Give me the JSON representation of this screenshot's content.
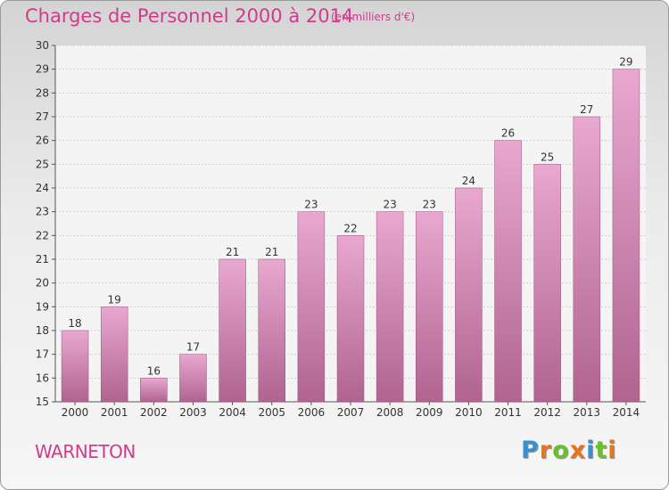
{
  "header": {
    "title": "Charges de Personnel 2000 à 2014",
    "unit": "(en milliers d'€)"
  },
  "footer": {
    "place": "WARNETON",
    "logo_text": "Proxiti"
  },
  "colors": {
    "accent": "#d23a8c",
    "bar_top": "#e8a8cf",
    "bar_bottom": "#b0648f",
    "logo": [
      "#3a8fd1",
      "#e8731a",
      "#6abf2a",
      "#e8731a",
      "#3a8fd1",
      "#6abf2a",
      "#e8731a"
    ]
  },
  "chart_data": {
    "type": "bar",
    "title": "Charges de Personnel 2000 à 2014",
    "subtitle": "(en milliers d'€)",
    "xlabel": "",
    "ylabel": "",
    "categories": [
      "2000",
      "2001",
      "2002",
      "2003",
      "2004",
      "2005",
      "2006",
      "2007",
      "2008",
      "2009",
      "2010",
      "2011",
      "2012",
      "2013",
      "2014"
    ],
    "values": [
      18,
      19,
      16,
      17,
      21,
      21,
      23,
      22,
      23,
      23,
      24,
      26,
      25,
      27,
      29
    ],
    "ylim": [
      15,
      30
    ],
    "yticks": [
      15,
      16,
      17,
      18,
      19,
      20,
      21,
      22,
      23,
      24,
      25,
      26,
      27,
      28,
      29,
      30
    ],
    "grid": true,
    "legend": "none"
  }
}
